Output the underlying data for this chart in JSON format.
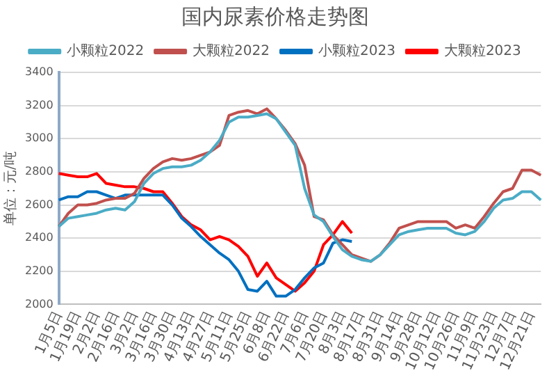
{
  "chart_data": {
    "type": "line",
    "title": "国内尿素价格走势图",
    "ylabel": "单位：元/吨",
    "categories": [
      "1月5日",
      null,
      "1月19日",
      null,
      "2月2日",
      null,
      "2月16日",
      null,
      "3月2日",
      null,
      "3月16日",
      null,
      "3月30日",
      null,
      "4月13日",
      null,
      "4月27日",
      null,
      "5月11日",
      null,
      "5月25日",
      null,
      "6月8日",
      null,
      "6月22日",
      null,
      "7月6日",
      null,
      "7月20日",
      null,
      "8月3日",
      null,
      "8月17日",
      null,
      "8月31日",
      null,
      "9月14日",
      null,
      "9月28日",
      null,
      "10月12日",
      null,
      "10月26日",
      null,
      "11月9日",
      null,
      "11月23日",
      null,
      "12月7日",
      null,
      "12月21日",
      null
    ],
    "series": [
      {
        "name": "小颗粒2022",
        "color": "#4bacc6",
        "values": [
          2470,
          2520,
          2530,
          2540,
          2550,
          2570,
          2580,
          2570,
          2620,
          2730,
          2790,
          2820,
          2830,
          2830,
          2840,
          2870,
          2920,
          2990,
          3100,
          3130,
          3130,
          3140,
          3150,
          3120,
          3040,
          2960,
          2700,
          2540,
          2500,
          2410,
          2330,
          2290,
          2270,
          2260,
          2300,
          2360,
          2420,
          2440,
          2450,
          2460,
          2460,
          2460,
          2430,
          2420,
          2440,
          2500,
          2580,
          2630,
          2640,
          2680,
          2680,
          2630
        ]
      },
      {
        "name": "大颗粒2022",
        "color": "#c0504d",
        "values": [
          2470,
          2550,
          2600,
          2600,
          2610,
          2630,
          2640,
          2640,
          2670,
          2760,
          2820,
          2860,
          2880,
          2870,
          2880,
          2900,
          2920,
          2960,
          3140,
          3160,
          3170,
          3150,
          3180,
          3120,
          3050,
          2970,
          2840,
          2530,
          2510,
          2420,
          2360,
          2300,
          2280,
          2260,
          2300,
          2370,
          2460,
          2480,
          2500,
          2500,
          2500,
          2500,
          2460,
          2480,
          2460,
          2530,
          2610,
          2680,
          2700,
          2810,
          2810,
          2780
        ]
      },
      {
        "name": "小颗粒2023",
        "color": "#0070c0",
        "values": [
          2630,
          2650,
          2650,
          2680,
          2680,
          2660,
          2640,
          2660,
          2660,
          2660,
          2660,
          2660,
          2600,
          2520,
          2470,
          2410,
          2360,
          2310,
          2270,
          2200,
          2090,
          2080,
          2140,
          2050,
          2050,
          2090,
          2160,
          2220,
          2250,
          2370,
          2390,
          2380,
          null,
          null,
          null,
          null,
          null,
          null,
          null,
          null,
          null,
          null,
          null,
          null,
          null,
          null,
          null,
          null,
          null,
          null,
          null,
          null
        ]
      },
      {
        "name": "大颗粒2023",
        "color": "#ff0000",
        "values": [
          2790,
          2780,
          2770,
          2770,
          2790,
          2730,
          2720,
          2710,
          2710,
          2700,
          2680,
          2680,
          2610,
          2530,
          2480,
          2450,
          2390,
          2410,
          2390,
          2350,
          2290,
          2170,
          2250,
          2160,
          2120,
          2080,
          2130,
          2200,
          2360,
          2420,
          2500,
          2430,
          null,
          null,
          null,
          null,
          null,
          null,
          null,
          null,
          null,
          null,
          null,
          null,
          null,
          null,
          null,
          null,
          null,
          null,
          null,
          null
        ]
      }
    ],
    "ylim": [
      2000,
      3400
    ],
    "yticks": [
      2000,
      2200,
      2400,
      2600,
      2800,
      3000,
      3200,
      3400
    ],
    "grid": "y",
    "legend": "top",
    "marker": "none",
    "line_style": "solid"
  }
}
